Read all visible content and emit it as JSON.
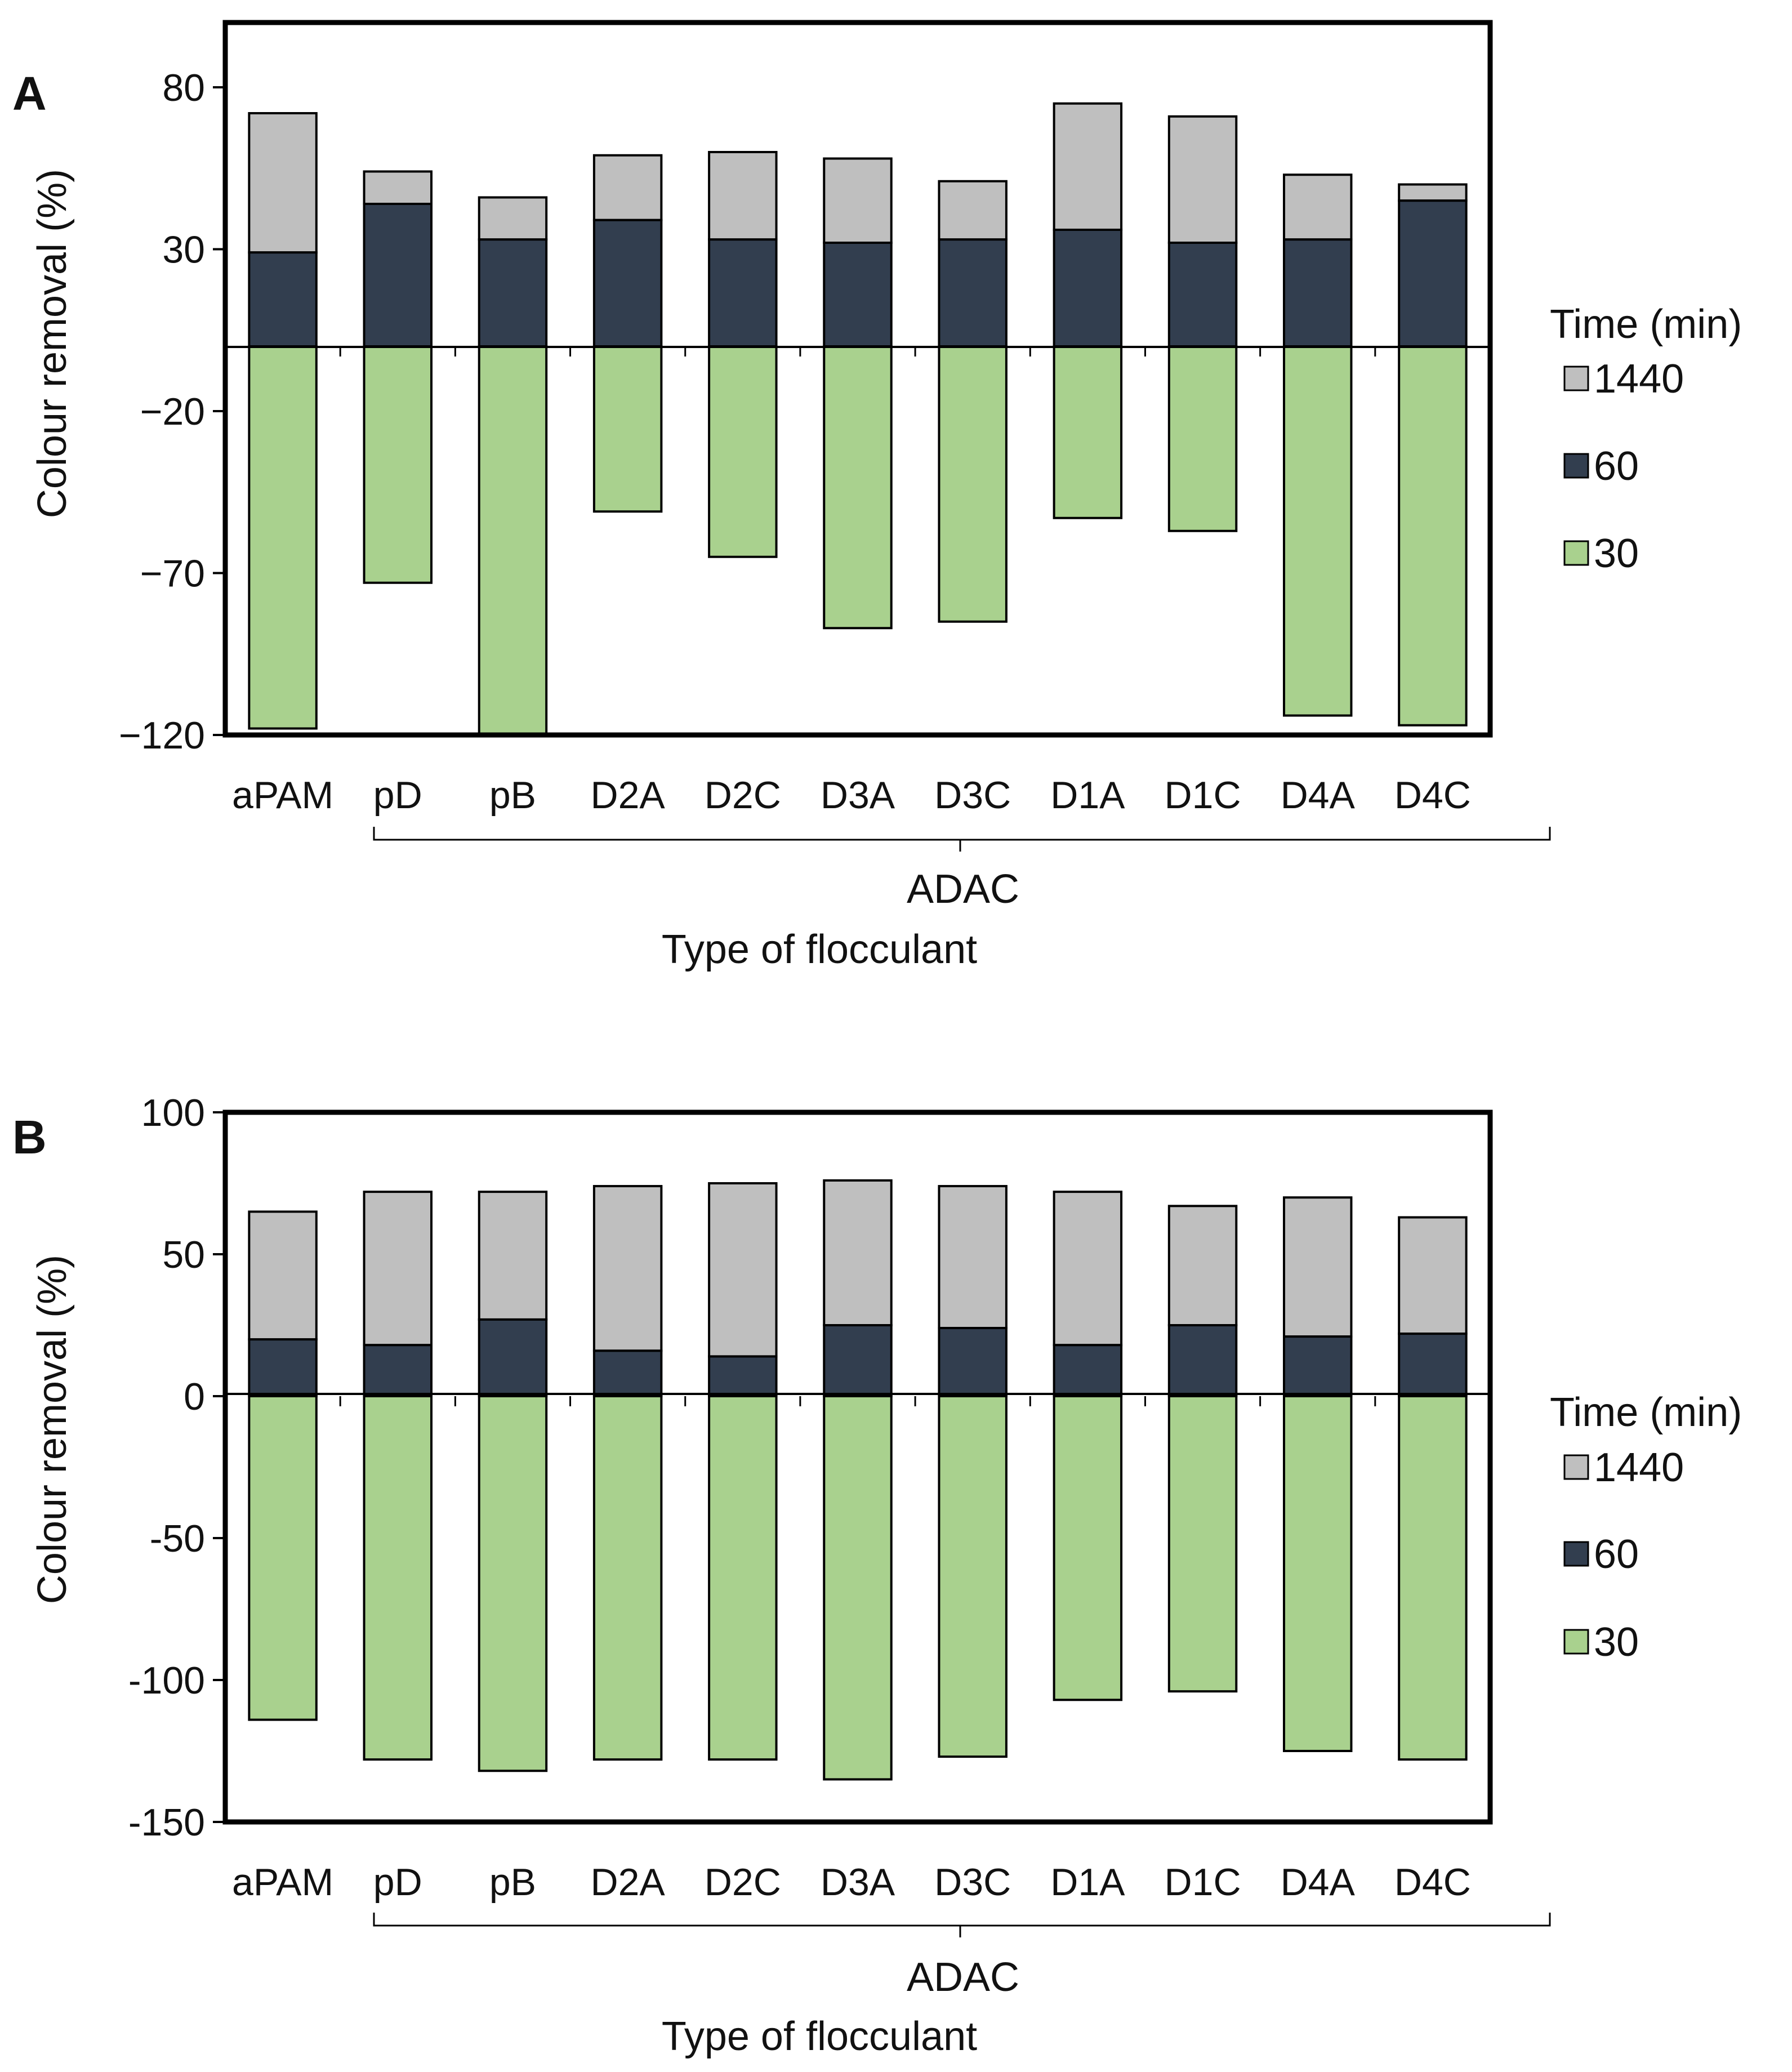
{
  "colors": {
    "s1440": "#bfbfbf",
    "s60": "#323e4f",
    "s30": "#a9d18e",
    "stroke": "#000000"
  },
  "chart_data": [
    {
      "type": "bar",
      "stacked": true,
      "panel_label": "A",
      "xlabel": "Type of flocculant",
      "ylabel": "Colour removal (%)",
      "group_label": "ADAC",
      "ylim": [
        -120,
        100
      ],
      "yticks": [
        80,
        30,
        -20,
        -70,
        -120
      ],
      "ytick_labels": [
        "80",
        "30",
        "−20",
        "−70",
        "−120"
      ],
      "categories": [
        "aPAM",
        "pD",
        "pB",
        "D2A",
        "D2C",
        "D3A",
        "D3C",
        "D1A",
        "D1C",
        "D4A",
        "D4C"
      ],
      "legend": {
        "title": "Time (min)",
        "entries": [
          "1440",
          "60",
          "30"
        ],
        "placement": "right"
      },
      "series": [
        {
          "name": "30",
          "values": [
            -118,
            -73,
            -120,
            -51,
            -65,
            -87,
            -85,
            -53,
            -57,
            -114,
            -117
          ]
        },
        {
          "name": "60",
          "values": [
            29,
            44,
            33,
            39,
            33,
            32,
            33,
            36,
            32,
            33,
            45
          ]
        },
        {
          "name": "1440",
          "values": [
            72,
            54,
            46,
            59,
            60,
            58,
            51,
            75,
            71,
            53,
            50
          ]
        }
      ]
    },
    {
      "type": "bar",
      "stacked": true,
      "panel_label": "B",
      "xlabel": "Type of flocculant",
      "ylabel": "Colour removal (%)",
      "group_label": "ADAC",
      "ylim": [
        -150,
        100
      ],
      "yticks": [
        100,
        50,
        0,
        -50,
        -100,
        -150
      ],
      "ytick_labels": [
        "100",
        "50",
        "0",
        "-50",
        "-100",
        "-150"
      ],
      "categories": [
        "aPAM",
        "pD",
        "pB",
        "D2A",
        "D2C",
        "D3A",
        "D3C",
        "D1A",
        "D1C",
        "D4A",
        "D4C"
      ],
      "legend": {
        "title": "Time (min)",
        "entries": [
          "1440",
          "60",
          "30"
        ],
        "placement": "right"
      },
      "series": [
        {
          "name": "30",
          "values": [
            -114,
            -128,
            -132,
            -128,
            -128,
            -135,
            -127,
            -107,
            -104,
            -125,
            -128
          ]
        },
        {
          "name": "60",
          "values": [
            20,
            18,
            27,
            16,
            14,
            25,
            24,
            18,
            25,
            21,
            22
          ]
        },
        {
          "name": "1440",
          "values": [
            65,
            72,
            72,
            74,
            75,
            76,
            74,
            72,
            67,
            70,
            63
          ]
        }
      ]
    }
  ]
}
